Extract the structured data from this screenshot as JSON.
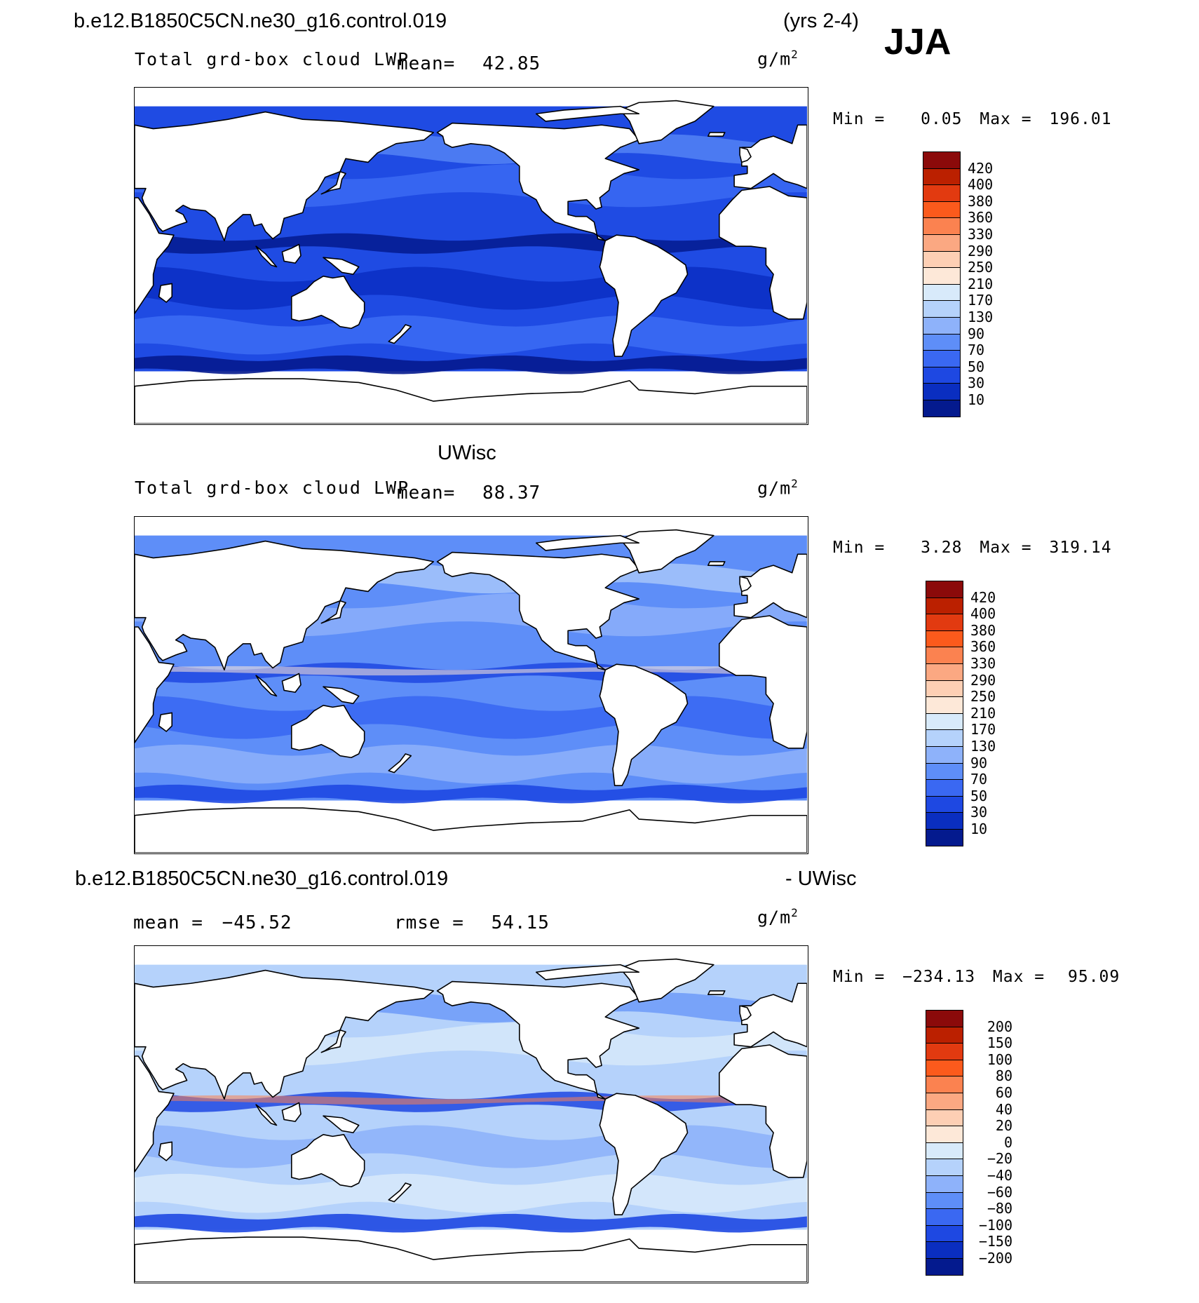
{
  "header": {
    "case_name": "b.e12.B1850C5CN.ne30_g16.control.019",
    "years": "(yrs 2-4)",
    "season": "JJA"
  },
  "panels": [
    {
      "id": "model",
      "variable": "Total grd-box cloud LWP",
      "mean_label": "mean=",
      "mean_value": "42.85",
      "units_base": "g/m",
      "units_exp": "2",
      "min_label": "Min =",
      "min_value": "0.05",
      "max_label": "Max =",
      "max_value": "196.01"
    },
    {
      "id": "obs",
      "title": "UWisc",
      "variable": "Total grd-box cloud LWP",
      "mean_label": "mean=",
      "mean_value": "88.37",
      "units_base": "g/m",
      "units_exp": "2",
      "min_label": "Min =",
      "min_value": "3.28",
      "max_label": "Max =",
      "max_value": "319.14"
    },
    {
      "id": "diff",
      "title_left": "b.e12.B1850C5CN.ne30_g16.control.019",
      "title_right": "- UWisc",
      "mean_label": "mean =",
      "mean_value": "−45.52",
      "rmse_label": "rmse =",
      "rmse_value": "54.15",
      "units_base": "g/m",
      "units_exp": "2",
      "min_label": "Min =",
      "min_value": "−234.13",
      "max_label": "Max =",
      "max_value": "95.09"
    }
  ],
  "colorbars": {
    "field": {
      "labels": [
        "420",
        "400",
        "380",
        "360",
        "330",
        "290",
        "250",
        "210",
        "170",
        "130",
        "90",
        "70",
        "50",
        "30",
        "10"
      ],
      "colors": [
        "#8b0a0a",
        "#bb2000",
        "#e23a10",
        "#fb5a1c",
        "#fb8250",
        "#fba882",
        "#fdcfb4",
        "#fde8d8",
        "#d8eafa",
        "#b5d2fb",
        "#8eb2fa",
        "#5e8ef8",
        "#3a68f2",
        "#1e48e2",
        "#0a2ec0",
        "#041a8e"
      ]
    },
    "diff": {
      "labels": [
        "200",
        "150",
        "100",
        "80",
        "60",
        "40",
        "20",
        "0",
        "−20",
        "−40",
        "−60",
        "−80",
        "−100",
        "−150",
        "−200"
      ],
      "colors": [
        "#8b0a0a",
        "#bb2000",
        "#e23a10",
        "#fb5a1c",
        "#fb8250",
        "#fba882",
        "#fdcfb4",
        "#fde8d8",
        "#d8eafa",
        "#b5d2fb",
        "#8eb2fa",
        "#5e8ef8",
        "#3a68f2",
        "#1e48e2",
        "#0a2ec0",
        "#041a8e"
      ]
    }
  },
  "map_fills": {
    "model": {
      "ocean": "#1f4be3",
      "band_a": "#0b30c4",
      "band_b": "#3c6cf4",
      "band_c": "#041a8e",
      "band_d": "#5e8ef8"
    },
    "obs": {
      "ocean": "#5e8ef8",
      "band_a": "#3a68f2",
      "band_b": "#8eb2fa",
      "band_c": "#1e48e2",
      "band_d": "#b5d2fb",
      "accent": "#fde8d8"
    },
    "diff": {
      "ocean": "#b5d2fb",
      "band_a": "#8eb2fa",
      "band_b": "#d8eafa",
      "band_c": "#1e48e2",
      "band_d": "#5e8ef8",
      "accent": "#fb8250"
    }
  }
}
